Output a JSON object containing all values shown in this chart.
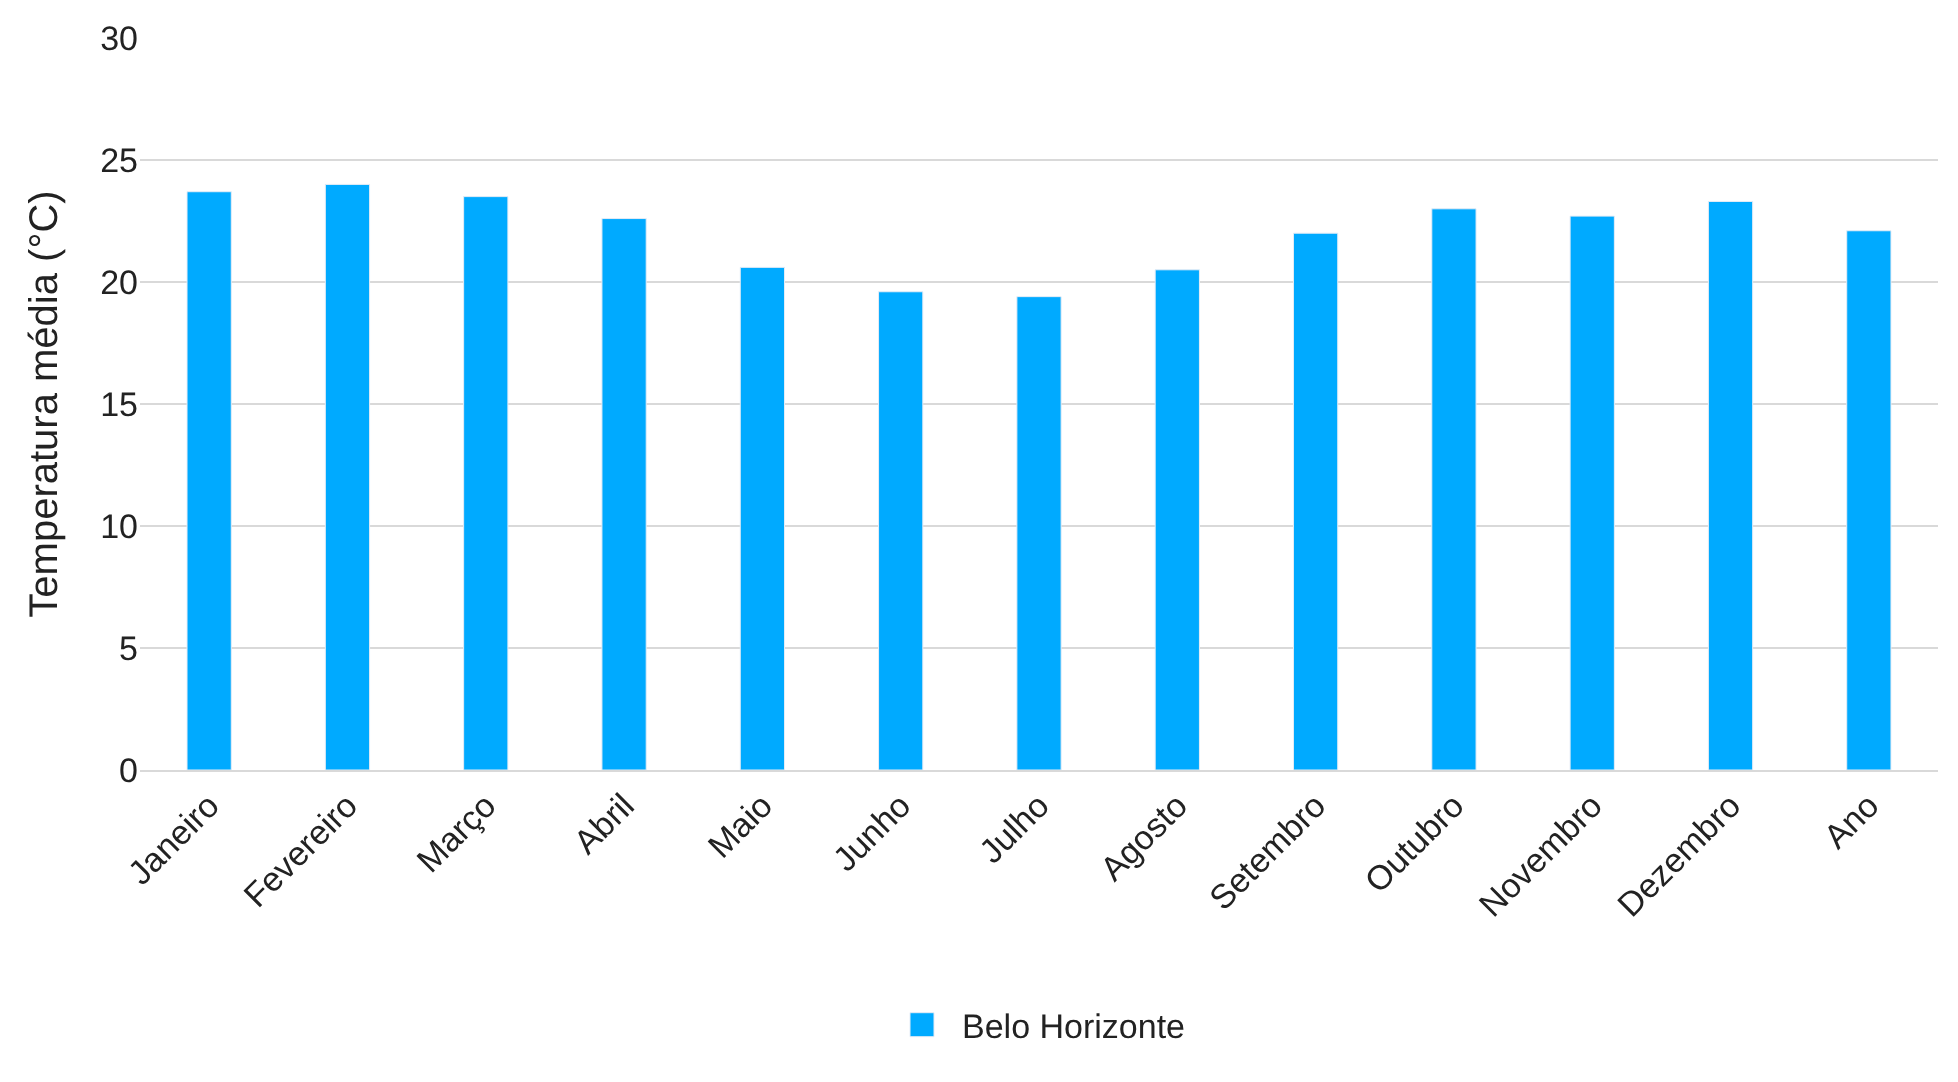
{
  "chart_data": {
    "type": "bar",
    "ylabel": "Temperatura média (°C)",
    "categories": [
      "Janeiro",
      "Fevereiro",
      "Março",
      "Abril",
      "Maio",
      "Junho",
      "Julho",
      "Agosto",
      "Setembro",
      "Outubro",
      "Novembro",
      "Dezembro",
      "Ano"
    ],
    "series": [
      {
        "name": "Belo Horizonte",
        "color": "#00aaff",
        "values": [
          23.7,
          24.0,
          23.5,
          22.6,
          20.6,
          19.6,
          19.4,
          20.5,
          22.0,
          23.0,
          22.7,
          23.3,
          22.1
        ]
      }
    ],
    "ylim": [
      0,
      30
    ],
    "yticks": [
      0,
      5,
      10,
      15,
      20,
      25,
      30
    ],
    "grid": "y",
    "legend": "bottom"
  }
}
